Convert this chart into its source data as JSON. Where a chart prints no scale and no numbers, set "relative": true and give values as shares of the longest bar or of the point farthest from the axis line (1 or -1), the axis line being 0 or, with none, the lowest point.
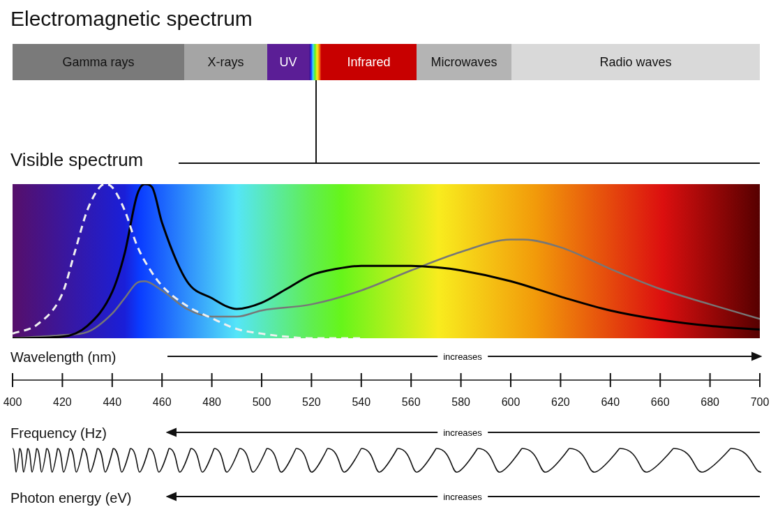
{
  "chart_data": {
    "type": "line",
    "title": "Electromagnetic spectrum",
    "xlabel": "Wavelength (nm)",
    "relative": true,
    "annotations": [
      "Gamma rays",
      "X-rays",
      "UV",
      "Infrared",
      "Microwaves",
      "Radio waves",
      "Visible spectrum",
      "increases",
      "Frequency (Hz)",
      "increases",
      "Photon energy (eV)",
      "increases"
    ],
    "xlim": [
      400,
      700
    ],
    "xticks": [
      400,
      420,
      440,
      460,
      480,
      500,
      520,
      540,
      560,
      580,
      600,
      620,
      640,
      660,
      680,
      700
    ],
    "grid": false,
    "legend": false,
    "series": [
      {
        "color": "#f0f0f0",
        "line_style": "dashed",
        "x": [
          400,
          410,
          420,
          425,
          430,
          435,
          437,
          440,
          445,
          450,
          455,
          460,
          470,
          480,
          490,
          500,
          510,
          520,
          540
        ],
        "values": [
          0.03,
          0.09,
          0.29,
          0.56,
          0.83,
          0.98,
          1.0,
          0.98,
          0.83,
          0.6,
          0.45,
          0.34,
          0.21,
          0.13,
          0.06,
          0.03,
          0.01,
          0.0,
          0.0
        ]
      },
      {
        "color": "#000000",
        "line_style": "solid",
        "x": [
          400,
          420,
          430,
          440,
          445,
          450,
          453,
          456,
          460,
          470,
          480,
          490,
          500,
          510,
          520,
          530,
          540,
          550,
          560,
          570,
          580,
          600,
          620,
          640,
          660,
          680,
          700
        ],
        "values": [
          0.0,
          0.01,
          0.08,
          0.3,
          0.55,
          0.93,
          1.0,
          0.98,
          0.75,
          0.37,
          0.26,
          0.19,
          0.23,
          0.32,
          0.41,
          0.45,
          0.47,
          0.47,
          0.47,
          0.46,
          0.44,
          0.37,
          0.27,
          0.18,
          0.12,
          0.08,
          0.056
        ]
      },
      {
        "color": "#777777",
        "line_style": "solid",
        "x": [
          400,
          420,
          430,
          440,
          445,
          450,
          453,
          460,
          470,
          480,
          490,
          500,
          520,
          540,
          560,
          580,
          600,
          605,
          620,
          640,
          660,
          680,
          700
        ],
        "values": [
          0.0,
          0.02,
          0.04,
          0.16,
          0.26,
          0.36,
          0.37,
          0.31,
          0.19,
          0.14,
          0.14,
          0.18,
          0.22,
          0.31,
          0.44,
          0.56,
          0.64,
          0.64,
          0.59,
          0.45,
          0.32,
          0.22,
          0.125
        ]
      }
    ]
  }
}
